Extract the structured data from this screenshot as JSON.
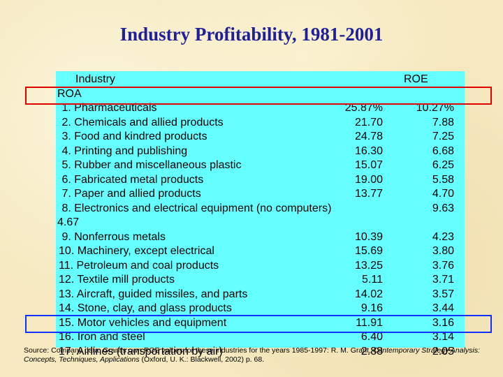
{
  "title": "Industry Profitability, 1981-2001",
  "header": {
    "industry_label": "Industry",
    "roe_label": "ROE",
    "roa_label": "ROA"
  },
  "rows": [
    {
      "label": " 1. Pharmaceuticals",
      "roe": "25.87%",
      "roa": "10.27%"
    },
    {
      "label": " 2. Chemicals and allied products",
      "roe": "21.70",
      "roa": "7.88"
    },
    {
      "label": " 3. Food and kindred products",
      "roe": "24.78",
      "roa": "7.25"
    },
    {
      "label": " 4. Printing and publishing",
      "roe": "16.30",
      "roa": "6.68"
    },
    {
      "label": " 5. Rubber and miscellaneous plastic",
      "roe": "15.07",
      "roa": "6.25"
    },
    {
      "label": " 6. Fabricated metal products",
      "roe": "19.00",
      "roa": "5.58"
    },
    {
      "label": " 7. Paper and allied products",
      "roe": "13.77",
      "roa": "4.70"
    },
    {
      "label": " 8. Electronics and electrical equipment (no computers)",
      "roe": "",
      "roa": "9.63",
      "wrap": "4.67"
    },
    {
      "label": " 9. Nonferrous metals",
      "roe": "10.39",
      "roa": "4.23"
    },
    {
      "label": "10. Machinery, except electrical",
      "roe": "15.69",
      "roa": "3.80"
    },
    {
      "label": "11. Petroleum and coal products",
      "roe": "13.25",
      "roa": "3.76"
    },
    {
      "label": "12. Textile mill products",
      "roe": "5.11",
      "roa": "3.71"
    },
    {
      "label": "13. Aircraft, guided missiles, and parts",
      "roe": "14.02",
      "roa": "3.57"
    },
    {
      "label": "14. Stone, clay, and glass products",
      "roe": "9.16",
      "roa": "3.44"
    },
    {
      "label": "15. Motor vehicles and equipment",
      "roe": "11.91",
      "roa": "3.16"
    },
    {
      "label": "16. Iron and steel",
      "roe": "6.40",
      "roa": "3.14"
    },
    {
      "label": "17. Airlines (transportation by air)",
      "roe": "2.88",
      "roa": "2.05"
    }
  ],
  "source": {
    "prefix": "Source: ",
    "text1": "Company data. Grant's own ROE values for these industries for the years 1985-1997: R. M. Grant, ",
    "italic1": "Contemporary Strategy Analysis: Concepts, Techniques, Applications",
    "text2": " (Oxford, U. K.: Blackwell, 2002) p. 68."
  }
}
